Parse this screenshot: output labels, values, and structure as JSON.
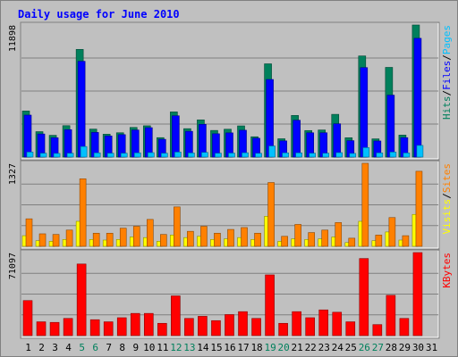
{
  "chart_data": {
    "type": "bar",
    "title": "Daily usage for June 2010",
    "colors": {
      "background": "#c0c0c0",
      "frame_light": "#ffffff",
      "frame_dark": "#808080",
      "grid": "#808080",
      "title_text": "#0000ff",
      "axis_text": "#000000",
      "weekend_label": "#00805c",
      "hits": "#00805c",
      "files": "#0000ff",
      "pages": "#00c0ff",
      "visits": "#ffff00",
      "sites": "#ff8000",
      "kbytes": "#ff0000"
    },
    "days": [
      "1",
      "2",
      "3",
      "4",
      "5",
      "6",
      "7",
      "8",
      "9",
      "10",
      "11",
      "12",
      "13",
      "14",
      "15",
      "16",
      "17",
      "18",
      "19",
      "20",
      "21",
      "22",
      "23",
      "24",
      "25",
      "26",
      "27",
      "28",
      "29",
      "30",
      "31"
    ],
    "weekend_days": [
      "5",
      "6",
      "12",
      "13",
      "19",
      "20",
      "26",
      "27"
    ],
    "panels": [
      {
        "id": "traffic",
        "ymax_label": "11898",
        "ymax": 11898,
        "legend": [
          {
            "text": "Pages",
            "color": "#00c0ff"
          },
          {
            "text": "/",
            "color": "#000000"
          },
          {
            "text": "Files",
            "color": "#0000ff"
          },
          {
            "text": "/",
            "color": "#000000"
          },
          {
            "text": "Hits",
            "color": "#00805c"
          }
        ],
        "series": [
          {
            "name": "Hits",
            "color": "#00805c",
            "values": [
              4150,
              2290,
              1960,
              2830,
              9700,
              2520,
              2060,
              2190,
              2670,
              2820,
              1750,
              4070,
              2560,
              3350,
              2400,
              2510,
              2810,
              1830,
              8400,
              1650,
              3750,
              2390,
              2440,
              3850,
              1740,
              9110,
              1640,
              8080,
              1980,
              11898,
              0
            ]
          },
          {
            "name": "Files",
            "color": "#0000ff",
            "values": [
              3780,
              2080,
              1740,
              2470,
              8630,
              2220,
              1900,
              2020,
              2440,
              2650,
              1600,
              3720,
              2320,
              2950,
              2100,
              2180,
              2420,
              1700,
              6990,
              1460,
              3320,
              2190,
              2190,
              3000,
              1480,
              8060,
              1450,
              5580,
              1750,
              10700,
              0
            ]
          },
          {
            "name": "Pages",
            "color": "#00c0ff",
            "values": [
              450,
              350,
              330,
              350,
              950,
              380,
              350,
              350,
              380,
              400,
              350,
              450,
              370,
              420,
              350,
              360,
              390,
              340,
              1000,
              380,
              380,
              350,
              350,
              400,
              330,
              850,
              380,
              450,
              370,
              1050,
              0
            ]
          }
        ]
      },
      {
        "id": "visitors",
        "ymax_label": "1327",
        "ymax": 1327,
        "legend": [
          {
            "text": "Sites",
            "color": "#ff8000"
          },
          {
            "text": "/",
            "color": "#000000"
          },
          {
            "text": "Visits",
            "color": "#ffff00"
          }
        ],
        "series": [
          {
            "name": "Visits",
            "color": "#ffff00",
            "values": [
              170,
              90,
              80,
              110,
              400,
              110,
              100,
              110,
              150,
              140,
              80,
              180,
              140,
              160,
              110,
              120,
              140,
              110,
              480,
              80,
              120,
              110,
              120,
              150,
              60,
              400,
              90,
              230,
              100,
              510,
              0
            ]
          },
          {
            "name": "Sites",
            "color": "#ff8000",
            "values": [
              440,
              200,
              190,
              260,
              1080,
              210,
              210,
              290,
              320,
              430,
              190,
              630,
              240,
              320,
              210,
              270,
              300,
              210,
              1020,
              160,
              350,
              220,
              260,
              380,
              130,
              1327,
              180,
              460,
              170,
              1200,
              0
            ]
          }
        ]
      },
      {
        "id": "kbytes",
        "ymax_label": "71097",
        "ymax": 71097,
        "legend": [
          {
            "text": "KBytes",
            "color": "#ff0000"
          }
        ],
        "series": [
          {
            "name": "KBytes",
            "color": "#ff0000",
            "values": [
              30000,
              11800,
              11300,
              14700,
              61300,
              13600,
              11800,
              15300,
              19000,
              19000,
              10500,
              34000,
              14700,
              16500,
              12800,
              18000,
              20500,
              14700,
              52000,
              10500,
              20500,
              15300,
              22000,
              20000,
              11800,
              66000,
              9400,
              34500,
              14700,
              71097,
              0
            ]
          }
        ]
      }
    ]
  }
}
